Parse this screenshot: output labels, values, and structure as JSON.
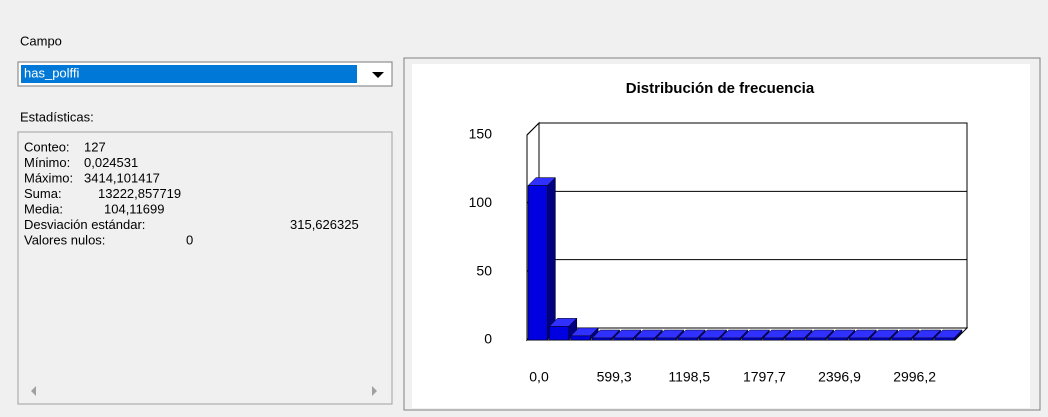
{
  "ui": {
    "field_label": "Campo",
    "field_value": "has_polffi",
    "stats_label": "Estadísticas:",
    "stats": [
      {
        "label": "Conteo:",
        "value": "127"
      },
      {
        "label": "Mínimo:",
        "value": "0,024531"
      },
      {
        "label": "Máximo:",
        "value": "3414,101417"
      },
      {
        "label": "Suma:",
        "value": "13222,857719"
      },
      {
        "label": "Media:",
        "value": "104,11699"
      },
      {
        "label": "Desviación estándar:",
        "value": "315,626325"
      },
      {
        "label": "Valores nulos:",
        "value": "0"
      }
    ]
  },
  "chart_data": {
    "type": "histogram",
    "title": "Distribución de frecuencia",
    "bins": [
      0,
      170.7,
      341.4,
      512.1,
      682.8,
      853.5,
      1024.2,
      1194.9,
      1365.6,
      1536.3,
      1707.0,
      1877.8,
      2048.5,
      2219.2,
      2389.9,
      2560.6,
      2731.3,
      2902.0,
      3072.7,
      3243.4,
      3414.1
    ],
    "values": [
      113,
      10,
      3,
      0,
      0,
      0,
      0,
      0,
      0,
      0,
      0,
      0,
      0,
      0,
      0,
      0,
      0,
      0,
      0,
      1
    ],
    "color": "#0000e0",
    "xlim": [
      0,
      3414.1
    ],
    "xticks": [
      {
        "value": 0,
        "label": "0,0"
      },
      {
        "value": 599.3,
        "label": "599,3"
      },
      {
        "value": 1198.5,
        "label": "1198,5"
      },
      {
        "value": 1797.7,
        "label": "1797,7"
      },
      {
        "value": 2396.9,
        "label": "2396,9"
      },
      {
        "value": 2996.2,
        "label": "2996,2"
      }
    ],
    "ylim": [
      0,
      150
    ],
    "yticks": [
      0,
      50,
      100,
      150
    ],
    "grid": true
  }
}
